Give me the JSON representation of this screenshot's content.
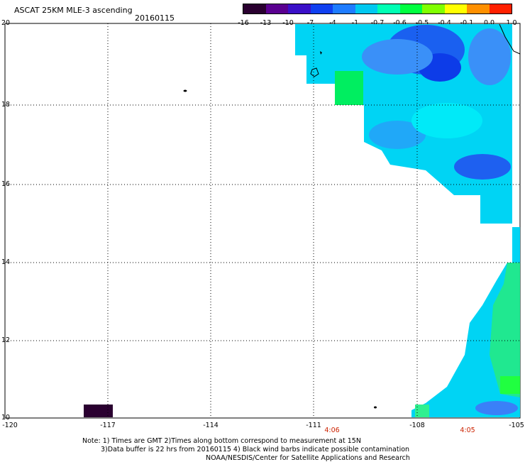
{
  "header": {
    "title": "ASCAT 25KM MLE-3 ascending",
    "date": "20160115"
  },
  "colorbar": {
    "colors": [
      "#2a0030",
      "#5a0090",
      "#3a10c8",
      "#1040f0",
      "#1e7cff",
      "#00c8f0",
      "#00ffb4",
      "#00ff40",
      "#80ff00",
      "#ffff00",
      "#ff9000",
      "#ff2000"
    ],
    "labels": [
      "-16",
      "-13",
      "-10",
      "-7",
      "-4",
      "-1",
      "-0.7",
      "-0.6",
      "-0.5",
      "-0.4",
      "-0.1",
      "0.0",
      "1.0"
    ]
  },
  "axes": {
    "x_ticks": [
      "-120",
      "-117",
      "-114",
      "-111",
      "-108",
      "-105"
    ],
    "y_ticks": [
      "20",
      "18",
      "16",
      "14",
      "12",
      "10"
    ],
    "time_labels": [
      "4:06",
      "4:05"
    ]
  },
  "notes": {
    "line1": "Note: 1) Times are GMT 2)Times along bottom correspond to measurement at 15N",
    "line2": "3)Data buffer is 22 hrs from 20160115 4) Black wind barbs indicate possible contamination",
    "line3": "NOAA/NESDIS/Center for Satellite Applications and Research"
  }
}
